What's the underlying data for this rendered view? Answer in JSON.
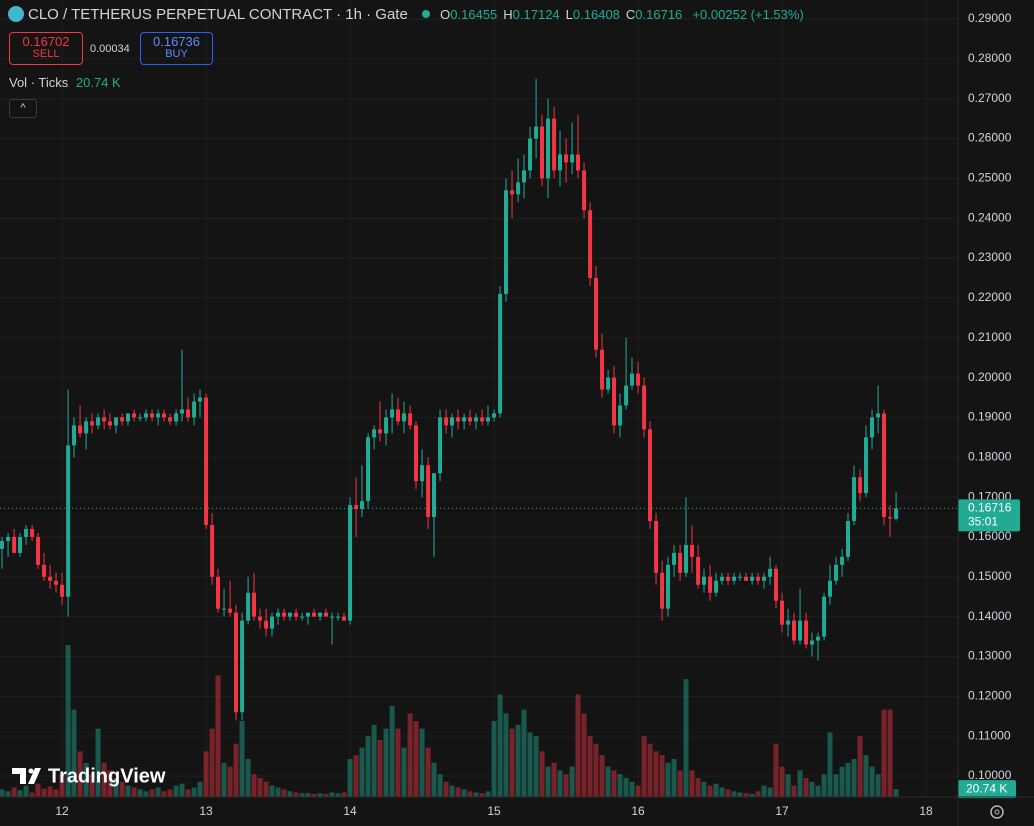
{
  "header": {
    "title": "CLO / TETHERUS PERPETUAL CONTRACT · 1h · Gate",
    "ohlc": [
      {
        "label": "O",
        "value": "0.16455"
      },
      {
        "label": "H",
        "value": "0.17124"
      },
      {
        "label": "L",
        "value": "0.16408"
      },
      {
        "label": "C",
        "value": "0.16716"
      }
    ],
    "change": "+0.00252 (+1.53%)"
  },
  "trade": {
    "sell_price": "0.16702",
    "sell": "SELL",
    "spread": "0.00034",
    "buy_price": "0.16736",
    "buy": "BUY"
  },
  "indicator": {
    "name": "Vol · Ticks",
    "value": "20.74 K"
  },
  "logo": "TradingView",
  "chart_data": {
    "type": "candlestick",
    "up_color": "#22ab94",
    "down_color": "#f23645",
    "candles": [
      [
        11.583,
        0.157,
        0.16,
        0.152,
        0.159
      ],
      [
        11.625,
        0.159,
        0.161,
        0.155,
        0.16
      ],
      [
        11.667,
        0.16,
        0.162,
        0.156,
        0.156
      ],
      [
        11.708,
        0.156,
        0.161,
        0.155,
        0.16
      ],
      [
        11.75,
        0.16,
        0.163,
        0.158,
        0.162
      ],
      [
        11.792,
        0.162,
        0.163,
        0.159,
        0.16
      ],
      [
        11.833,
        0.16,
        0.161,
        0.152,
        0.153
      ],
      [
        11.875,
        0.153,
        0.156,
        0.149,
        0.15
      ],
      [
        11.917,
        0.15,
        0.153,
        0.147,
        0.149
      ],
      [
        11.958,
        0.149,
        0.151,
        0.146,
        0.148
      ],
      [
        12,
        0.148,
        0.151,
        0.143,
        0.145
      ],
      [
        12.042,
        0.145,
        0.197,
        0.14,
        0.183
      ],
      [
        12.083,
        0.183,
        0.19,
        0.18,
        0.188
      ],
      [
        12.125,
        0.188,
        0.193,
        0.185,
        0.186
      ],
      [
        12.167,
        0.186,
        0.19,
        0.182,
        0.189
      ],
      [
        12.208,
        0.189,
        0.191,
        0.186,
        0.188
      ],
      [
        12.25,
        0.188,
        0.191,
        0.187,
        0.19
      ],
      [
        12.292,
        0.19,
        0.192,
        0.187,
        0.189
      ],
      [
        12.333,
        0.189,
        0.191,
        0.187,
        0.188
      ],
      [
        12.375,
        0.188,
        0.19,
        0.186,
        0.19
      ],
      [
        12.417,
        0.19,
        0.191,
        0.188,
        0.189
      ],
      [
        12.458,
        0.189,
        0.191,
        0.188,
        0.191
      ],
      [
        12.5,
        0.191,
        0.192,
        0.189,
        0.19
      ],
      [
        12.542,
        0.19,
        0.191,
        0.189,
        0.19
      ],
      [
        12.583,
        0.19,
        0.192,
        0.189,
        0.191
      ],
      [
        12.625,
        0.191,
        0.192,
        0.189,
        0.19
      ],
      [
        12.667,
        0.19,
        0.192,
        0.188,
        0.191
      ],
      [
        12.708,
        0.191,
        0.192,
        0.189,
        0.19
      ],
      [
        12.75,
        0.19,
        0.191,
        0.188,
        0.189
      ],
      [
        12.792,
        0.189,
        0.192,
        0.188,
        0.191
      ],
      [
        12.833,
        0.191,
        0.207,
        0.189,
        0.192
      ],
      [
        12.875,
        0.192,
        0.195,
        0.189,
        0.19
      ],
      [
        12.917,
        0.19,
        0.196,
        0.188,
        0.194
      ],
      [
        12.958,
        0.194,
        0.197,
        0.19,
        0.195
      ],
      [
        13,
        0.195,
        0.196,
        0.162,
        0.163
      ],
      [
        13.042,
        0.163,
        0.166,
        0.148,
        0.15
      ],
      [
        13.083,
        0.15,
        0.152,
        0.141,
        0.142
      ],
      [
        13.125,
        0.142,
        0.147,
        0.14,
        0.142
      ],
      [
        13.167,
        0.142,
        0.149,
        0.14,
        0.141
      ],
      [
        13.208,
        0.141,
        0.143,
        0.114,
        0.116
      ],
      [
        13.25,
        0.116,
        0.141,
        0.114,
        0.139
      ],
      [
        13.292,
        0.139,
        0.15,
        0.138,
        0.146
      ],
      [
        13.333,
        0.146,
        0.151,
        0.139,
        0.14
      ],
      [
        13.375,
        0.14,
        0.142,
        0.137,
        0.139
      ],
      [
        13.417,
        0.139,
        0.142,
        0.135,
        0.137
      ],
      [
        13.458,
        0.137,
        0.141,
        0.135,
        0.14
      ],
      [
        13.5,
        0.14,
        0.142,
        0.138,
        0.141
      ],
      [
        13.542,
        0.141,
        0.142,
        0.139,
        0.14
      ],
      [
        13.583,
        0.14,
        0.141,
        0.139,
        0.141
      ],
      [
        13.625,
        0.141,
        0.142,
        0.139,
        0.14
      ],
      [
        13.667,
        0.14,
        0.141,
        0.139,
        0.14
      ],
      [
        13.708,
        0.14,
        0.141,
        0.138,
        0.141
      ],
      [
        13.75,
        0.141,
        0.142,
        0.14,
        0.14
      ],
      [
        13.792,
        0.14,
        0.141,
        0.139,
        0.141
      ],
      [
        13.833,
        0.141,
        0.142,
        0.14,
        0.14
      ],
      [
        13.875,
        0.14,
        0.141,
        0.133,
        0.14
      ],
      [
        13.917,
        0.14,
        0.141,
        0.139,
        0.14
      ],
      [
        13.958,
        0.14,
        0.141,
        0.139,
        0.139
      ],
      [
        14,
        0.139,
        0.17,
        0.138,
        0.168
      ],
      [
        14.042,
        0.168,
        0.175,
        0.16,
        0.167
      ],
      [
        14.083,
        0.167,
        0.178,
        0.165,
        0.169
      ],
      [
        14.125,
        0.169,
        0.186,
        0.167,
        0.185
      ],
      [
        14.167,
        0.185,
        0.188,
        0.182,
        0.187
      ],
      [
        14.208,
        0.187,
        0.194,
        0.184,
        0.186
      ],
      [
        14.25,
        0.186,
        0.192,
        0.183,
        0.19
      ],
      [
        14.292,
        0.19,
        0.196,
        0.186,
        0.192
      ],
      [
        14.333,
        0.192,
        0.195,
        0.188,
        0.189
      ],
      [
        14.375,
        0.189,
        0.194,
        0.186,
        0.191
      ],
      [
        14.417,
        0.191,
        0.193,
        0.187,
        0.188
      ],
      [
        14.458,
        0.188,
        0.189,
        0.172,
        0.174
      ],
      [
        14.5,
        0.174,
        0.182,
        0.17,
        0.178
      ],
      [
        14.542,
        0.178,
        0.18,
        0.162,
        0.165
      ],
      [
        14.583,
        0.165,
        0.174,
        0.155,
        0.176
      ],
      [
        14.625,
        0.176,
        0.192,
        0.174,
        0.19
      ],
      [
        14.667,
        0.19,
        0.192,
        0.186,
        0.188
      ],
      [
        14.708,
        0.188,
        0.191,
        0.185,
        0.19
      ],
      [
        14.75,
        0.19,
        0.192,
        0.187,
        0.189
      ],
      [
        14.792,
        0.189,
        0.191,
        0.187,
        0.19
      ],
      [
        14.833,
        0.19,
        0.192,
        0.188,
        0.189
      ],
      [
        14.875,
        0.189,
        0.191,
        0.187,
        0.19
      ],
      [
        14.917,
        0.19,
        0.192,
        0.188,
        0.189
      ],
      [
        14.958,
        0.189,
        0.193,
        0.188,
        0.19
      ],
      [
        15,
        0.19,
        0.192,
        0.189,
        0.191
      ],
      [
        15.042,
        0.191,
        0.223,
        0.19,
        0.221
      ],
      [
        15.083,
        0.221,
        0.25,
        0.219,
        0.247
      ],
      [
        15.125,
        0.247,
        0.252,
        0.24,
        0.246
      ],
      [
        15.167,
        0.246,
        0.255,
        0.244,
        0.249
      ],
      [
        15.208,
        0.249,
        0.256,
        0.245,
        0.252
      ],
      [
        15.25,
        0.252,
        0.263,
        0.25,
        0.26
      ],
      [
        15.292,
        0.26,
        0.275,
        0.255,
        0.263
      ],
      [
        15.333,
        0.263,
        0.266,
        0.248,
        0.25
      ],
      [
        15.375,
        0.25,
        0.27,
        0.245,
        0.265
      ],
      [
        15.417,
        0.265,
        0.268,
        0.25,
        0.252
      ],
      [
        15.458,
        0.252,
        0.262,
        0.248,
        0.256
      ],
      [
        15.5,
        0.256,
        0.26,
        0.249,
        0.254
      ],
      [
        15.542,
        0.254,
        0.264,
        0.251,
        0.256
      ],
      [
        15.583,
        0.256,
        0.266,
        0.25,
        0.252
      ],
      [
        15.625,
        0.252,
        0.254,
        0.24,
        0.242
      ],
      [
        15.667,
        0.242,
        0.244,
        0.223,
        0.225
      ],
      [
        15.708,
        0.225,
        0.228,
        0.205,
        0.207
      ],
      [
        15.75,
        0.207,
        0.211,
        0.195,
        0.197
      ],
      [
        15.792,
        0.197,
        0.202,
        0.196,
        0.2
      ],
      [
        15.833,
        0.2,
        0.203,
        0.186,
        0.188
      ],
      [
        15.875,
        0.188,
        0.196,
        0.185,
        0.193
      ],
      [
        15.917,
        0.193,
        0.21,
        0.192,
        0.198
      ],
      [
        15.958,
        0.198,
        0.205,
        0.197,
        0.201
      ],
      [
        16,
        0.201,
        0.204,
        0.196,
        0.198
      ],
      [
        16.042,
        0.198,
        0.2,
        0.185,
        0.187
      ],
      [
        16.083,
        0.187,
        0.189,
        0.162,
        0.164
      ],
      [
        16.125,
        0.164,
        0.166,
        0.148,
        0.151
      ],
      [
        16.167,
        0.151,
        0.154,
        0.139,
        0.142
      ],
      [
        16.208,
        0.142,
        0.155,
        0.14,
        0.153
      ],
      [
        16.25,
        0.153,
        0.158,
        0.15,
        0.156
      ],
      [
        16.292,
        0.156,
        0.158,
        0.149,
        0.151
      ],
      [
        16.333,
        0.151,
        0.17,
        0.15,
        0.158
      ],
      [
        16.375,
        0.158,
        0.163,
        0.151,
        0.155
      ],
      [
        16.417,
        0.155,
        0.158,
        0.147,
        0.148
      ],
      [
        16.458,
        0.148,
        0.152,
        0.146,
        0.15
      ],
      [
        16.5,
        0.15,
        0.153,
        0.144,
        0.146
      ],
      [
        16.542,
        0.146,
        0.151,
        0.145,
        0.149
      ],
      [
        16.583,
        0.149,
        0.151,
        0.148,
        0.15
      ],
      [
        16.625,
        0.15,
        0.151,
        0.148,
        0.149
      ],
      [
        16.667,
        0.149,
        0.151,
        0.148,
        0.15
      ],
      [
        16.708,
        0.15,
        0.151,
        0.149,
        0.15
      ],
      [
        16.75,
        0.15,
        0.151,
        0.149,
        0.149
      ],
      [
        16.792,
        0.149,
        0.151,
        0.148,
        0.15
      ],
      [
        16.833,
        0.15,
        0.151,
        0.148,
        0.149
      ],
      [
        16.875,
        0.149,
        0.151,
        0.147,
        0.15
      ],
      [
        16.917,
        0.15,
        0.155,
        0.148,
        0.152
      ],
      [
        16.958,
        0.152,
        0.153,
        0.142,
        0.144
      ],
      [
        17,
        0.144,
        0.146,
        0.136,
        0.138
      ],
      [
        17.042,
        0.138,
        0.142,
        0.135,
        0.139
      ],
      [
        17.083,
        0.139,
        0.141,
        0.133,
        0.134
      ],
      [
        17.125,
        0.134,
        0.147,
        0.133,
        0.139
      ],
      [
        17.167,
        0.139,
        0.141,
        0.132,
        0.133
      ],
      [
        17.208,
        0.133,
        0.136,
        0.13,
        0.134
      ],
      [
        17.25,
        0.134,
        0.136,
        0.129,
        0.135
      ],
      [
        17.292,
        0.135,
        0.146,
        0.134,
        0.145
      ],
      [
        17.333,
        0.145,
        0.153,
        0.143,
        0.149
      ],
      [
        17.375,
        0.149,
        0.155,
        0.148,
        0.153
      ],
      [
        17.417,
        0.153,
        0.157,
        0.15,
        0.155
      ],
      [
        17.458,
        0.155,
        0.166,
        0.154,
        0.164
      ],
      [
        17.5,
        0.164,
        0.178,
        0.163,
        0.175
      ],
      [
        17.542,
        0.175,
        0.177,
        0.169,
        0.171
      ],
      [
        17.583,
        0.171,
        0.188,
        0.17,
        0.185
      ],
      [
        17.625,
        0.185,
        0.192,
        0.182,
        0.19
      ],
      [
        17.667,
        0.19,
        0.198,
        0.186,
        0.191
      ],
      [
        17.708,
        0.191,
        0.192,
        0.163,
        0.165
      ],
      [
        17.75,
        0.165,
        0.168,
        0.16,
        0.16464
      ],
      [
        17.792,
        0.16455,
        0.17124,
        0.16408,
        0.16716
      ]
    ],
    "volumes": [
      20,
      15,
      25,
      18,
      30,
      12,
      35,
      22,
      28,
      20,
      60,
      400,
      230,
      120,
      90,
      60,
      180,
      90,
      70,
      50,
      40,
      30,
      25,
      20,
      15,
      20,
      25,
      15,
      20,
      30,
      35,
      20,
      25,
      40,
      120,
      180,
      320,
      90,
      80,
      140,
      200,
      100,
      60,
      50,
      40,
      30,
      25,
      20,
      15,
      12,
      10,
      10,
      8,
      10,
      8,
      12,
      10,
      12,
      100,
      110,
      130,
      160,
      190,
      150,
      180,
      240,
      180,
      130,
      220,
      200,
      180,
      130,
      90,
      60,
      40,
      30,
      25,
      20,
      15,
      12,
      10,
      15,
      200,
      270,
      220,
      180,
      190,
      230,
      170,
      160,
      120,
      80,
      90,
      70,
      60,
      80,
      270,
      220,
      160,
      140,
      110,
      80,
      70,
      60,
      50,
      40,
      30,
      160,
      140,
      120,
      110,
      90,
      100,
      70,
      310,
      70,
      50,
      40,
      30,
      35,
      25,
      20,
      15,
      12,
      10,
      8,
      15,
      30,
      25,
      140,
      80,
      60,
      30,
      70,
      50,
      40,
      30,
      60,
      170,
      60,
      80,
      90,
      100,
      160,
      110,
      80,
      60,
      230,
      230,
      20.74
    ],
    "xlim": [
      11.569,
      18.222
    ],
    "xticks": [
      12,
      13,
      14,
      15,
      16,
      17,
      18
    ],
    "ylim": [
      0.09473,
      0.29477
    ],
    "yticks": [
      {
        "value": 0.1,
        "label": "0.10000"
      },
      {
        "value": 0.11,
        "label": "0.11000"
      },
      {
        "value": 0.12,
        "label": "0.12000"
      },
      {
        "value": 0.13,
        "label": "0.13000"
      },
      {
        "value": 0.14,
        "label": "0.14000"
      },
      {
        "value": 0.15,
        "label": "0.15000"
      },
      {
        "value": 0.16,
        "label": "0.16000"
      },
      {
        "value": 0.17,
        "label": "0.17000"
      },
      {
        "value": 0.18,
        "label": "0.18000"
      },
      {
        "value": 0.19,
        "label": "0.19000"
      },
      {
        "value": 0.2,
        "label": "0.20000"
      },
      {
        "value": 0.21,
        "label": "0.21000"
      },
      {
        "value": 0.22,
        "label": "0.22000"
      },
      {
        "value": 0.23,
        "label": "0.23000"
      },
      {
        "value": 0.24,
        "label": "0.24000"
      },
      {
        "value": 0.25,
        "label": "0.25000"
      },
      {
        "value": 0.26,
        "label": "0.26000"
      },
      {
        "value": 0.27,
        "label": "0.27000"
      },
      {
        "value": 0.28,
        "label": "0.28000"
      },
      {
        "value": 0.29,
        "label": "0.29000"
      }
    ],
    "grid": true,
    "last_price": {
      "value": 0.16716,
      "label": "0.16716"
    },
    "countdown": "35:01",
    "volume_label": "20.74 K"
  }
}
